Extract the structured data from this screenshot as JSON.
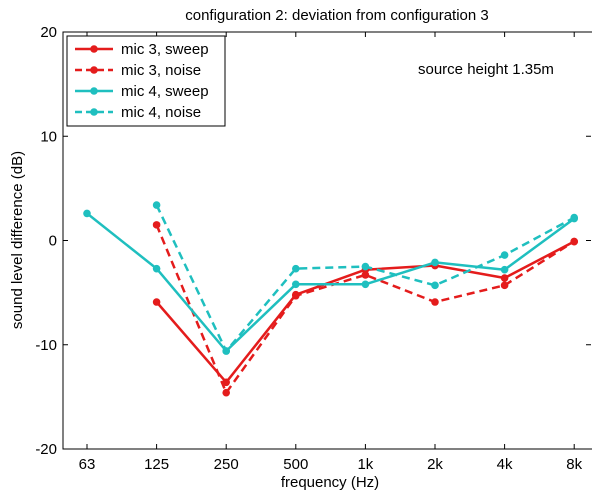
{
  "chart_data": {
    "type": "line",
    "title": "configuration 2: deviation from configuration 3",
    "xlabel": "frequency (Hz)",
    "ylabel": "sound level difference (dB)",
    "annotation": "source height 1.35m",
    "categories": [
      "63",
      "125",
      "250",
      "500",
      "1k",
      "2k",
      "4k",
      "8k"
    ],
    "ylim": [
      -20,
      20
    ],
    "yticks": [
      -20,
      -10,
      0,
      10,
      20
    ],
    "grid": false,
    "legend_position": "top-left",
    "series": [
      {
        "name": "mic 3, sweep",
        "color": "#e41c1c",
        "dash": "solid",
        "values": [
          null,
          -5.9,
          -13.6,
          -5.2,
          -2.8,
          -2.4,
          -3.6,
          -0.1
        ]
      },
      {
        "name": "mic 3, noise",
        "color": "#e41c1c",
        "dash": "dashed",
        "values": [
          null,
          1.5,
          -14.6,
          -5.3,
          -3.3,
          -5.9,
          -4.3,
          -0.1
        ]
      },
      {
        "name": "mic 4, sweep",
        "color": "#1fbfbf",
        "dash": "solid",
        "values": [
          2.6,
          -2.7,
          -10.6,
          -4.2,
          -4.2,
          -2.1,
          -2.8,
          2.1
        ]
      },
      {
        "name": "mic 4, noise",
        "color": "#1fbfbf",
        "dash": "dashed",
        "values": [
          null,
          3.4,
          -10.6,
          -2.7,
          -2.5,
          -4.3,
          -1.4,
          2.2
        ]
      }
    ]
  }
}
